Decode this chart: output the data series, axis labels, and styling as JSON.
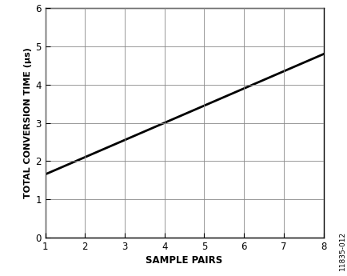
{
  "x": [
    1,
    8
  ],
  "y_start": 1.65,
  "y_end": 4.8,
  "line_color": "#000000",
  "line_width": 2.0,
  "xlabel": "SAMPLE PAIRS",
  "ylabel": "TOTAL CONVERSION TIME (μs)",
  "xlim": [
    1,
    8
  ],
  "ylim": [
    0,
    6
  ],
  "xticks": [
    1,
    2,
    3,
    4,
    5,
    6,
    7,
    8
  ],
  "yticks": [
    0,
    1,
    2,
    3,
    4,
    5,
    6
  ],
  "grid_color": "#888888",
  "background_color": "#ffffff",
  "watermark": "11835-012",
  "xlabel_fontsize": 8.5,
  "ylabel_fontsize": 8,
  "tick_fontsize": 8.5,
  "watermark_fontsize": 6.5
}
